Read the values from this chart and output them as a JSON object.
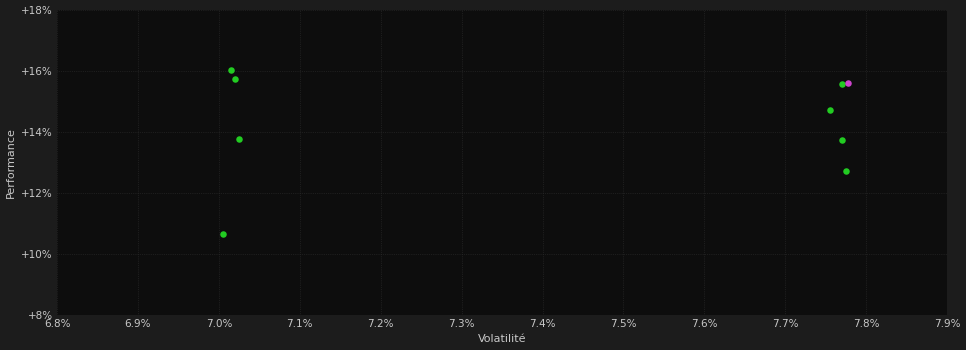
{
  "background_color": "#1c1c1c",
  "plot_bg_color": "#0d0d0d",
  "text_color": "#c8c8c8",
  "xlabel": "Volatilité",
  "ylabel": "Performance",
  "xlim": [
    0.068,
    0.079
  ],
  "ylim": [
    0.08,
    0.18
  ],
  "xticks": [
    0.068,
    0.069,
    0.07,
    0.071,
    0.072,
    0.073,
    0.074,
    0.075,
    0.076,
    0.077,
    0.078,
    0.079
  ],
  "yticks": [
    0.08,
    0.1,
    0.12,
    0.14,
    0.16,
    0.18
  ],
  "green_points_left": [
    [
      0.07015,
      0.1602
    ],
    [
      0.0702,
      0.1572
    ],
    [
      0.07025,
      0.1375
    ],
    [
      0.07005,
      0.1063
    ]
  ],
  "green_points_right": [
    [
      0.0777,
      0.1555
    ],
    [
      0.07755,
      0.1472
    ],
    [
      0.0777,
      0.1372
    ],
    [
      0.07775,
      0.127
    ]
  ],
  "magenta_points": [
    [
      0.07778,
      0.156
    ]
  ],
  "point_size": 22,
  "green_color": "#22cc22",
  "magenta_color": "#cc44cc",
  "font_size_axis_label": 8,
  "font_size_tick": 7.5
}
